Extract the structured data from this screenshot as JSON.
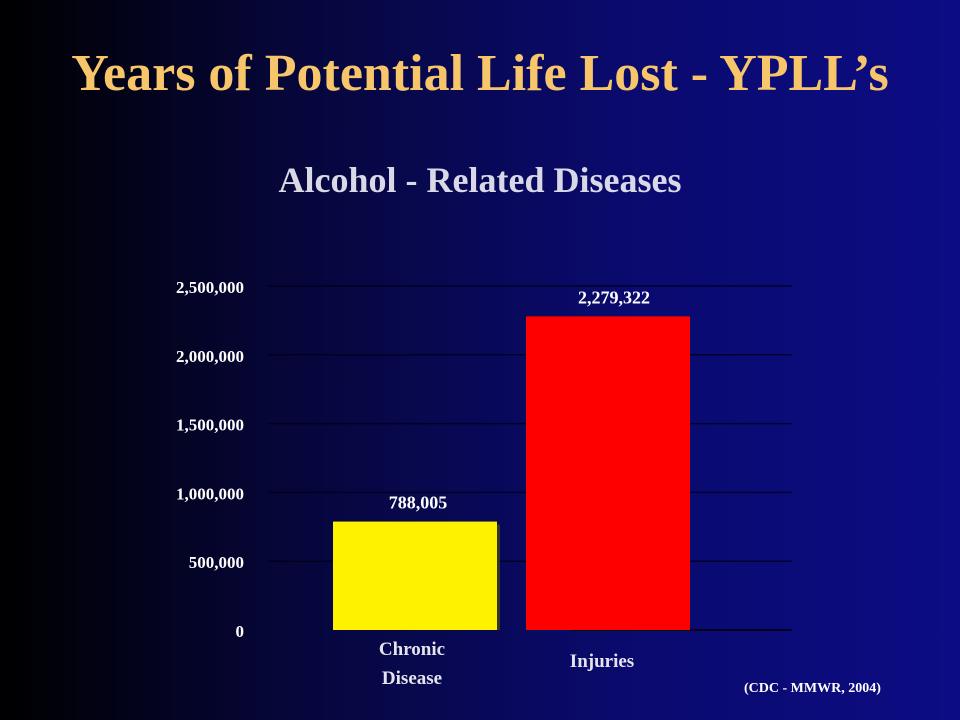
{
  "title": "Years of Potential Life Lost - YPLL’s",
  "source": "(CDC - MMWR, 2004)",
  "colors": {
    "title": "#f7c66a",
    "subtitle": "#d8d8e6",
    "bar_chronic": "#fff200",
    "bar_injuries": "#ff0000",
    "text": "#ffffff"
  },
  "chart_data": {
    "type": "bar",
    "title": "Alcohol - Related Diseases",
    "categories": [
      "Chronic Disease",
      "Injuries"
    ],
    "category_lines": [
      [
        "Chronic",
        "Disease"
      ],
      [
        "Injuries"
      ]
    ],
    "values": [
      788005,
      2279322
    ],
    "value_labels": [
      "788,005",
      "2,279,322"
    ],
    "ylim": [
      0,
      2500000
    ],
    "yticks": [
      0,
      500000,
      1000000,
      1500000,
      2000000,
      2500000
    ],
    "ytick_labels": [
      "0",
      "500,000",
      "1,000,000",
      "1,500,000",
      "2,000,000",
      "2,500,000"
    ],
    "grid": true,
    "xlabel": "",
    "ylabel": ""
  }
}
